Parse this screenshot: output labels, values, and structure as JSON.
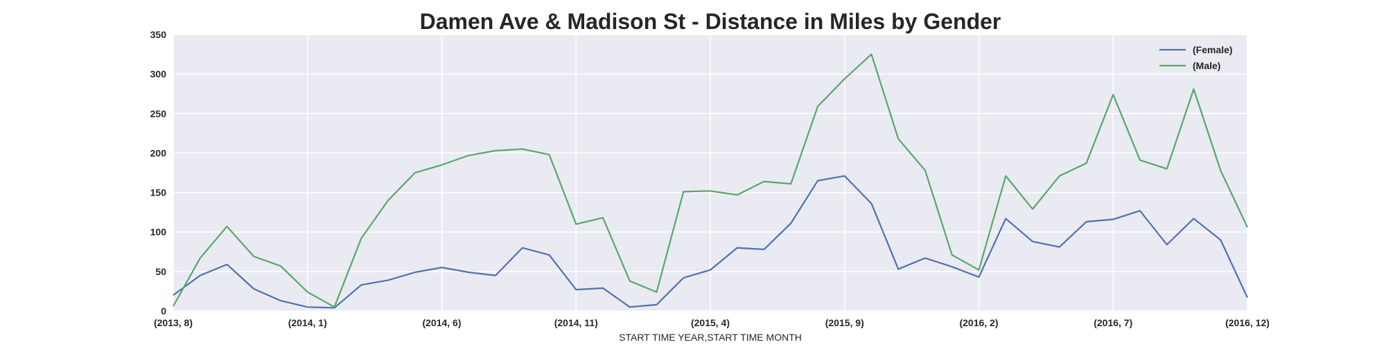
{
  "chart_data": {
    "type": "line",
    "title": "Damen Ave & Madison St - Distance in Miles by Gender",
    "xlabel": "START TIME YEAR,START TIME MONTH",
    "ylabel": "",
    "ylim": [
      0,
      350
    ],
    "yticks": [
      0,
      50,
      100,
      150,
      200,
      250,
      300,
      350
    ],
    "x": [
      "(2013, 8)",
      "(2013, 9)",
      "(2013, 10)",
      "(2013, 11)",
      "(2013, 12)",
      "(2014, 1)",
      "(2014, 2)",
      "(2014, 3)",
      "(2014, 4)",
      "(2014, 5)",
      "(2014, 6)",
      "(2014, 7)",
      "(2014, 8)",
      "(2014, 9)",
      "(2014, 10)",
      "(2014, 11)",
      "(2014, 12)",
      "(2015, 1)",
      "(2015, 2)",
      "(2015, 3)",
      "(2015, 4)",
      "(2015, 5)",
      "(2015, 6)",
      "(2015, 7)",
      "(2015, 8)",
      "(2015, 9)",
      "(2015, 10)",
      "(2015, 11)",
      "(2015, 12)",
      "(2016, 1)",
      "(2016, 2)",
      "(2016, 3)",
      "(2016, 4)",
      "(2016, 5)",
      "(2016, 6)",
      "(2016, 7)",
      "(2016, 8)",
      "(2016, 9)",
      "(2016, 10)",
      "(2016, 11)",
      "(2016, 12)"
    ],
    "xticks": [
      "(2013, 8)",
      "(2014, 1)",
      "(2014, 6)",
      "(2014, 11)",
      "(2015, 4)",
      "(2015, 9)",
      "(2016, 2)",
      "(2016, 7)",
      "(2016, 12)"
    ],
    "series": [
      {
        "name": "(Female)",
        "color": "#4c72b0",
        "values": [
          20,
          45,
          59,
          28,
          13,
          5,
          4,
          33,
          39,
          49,
          55,
          49,
          45,
          80,
          71,
          27,
          29,
          5,
          8,
          42,
          52,
          80,
          78,
          111,
          165,
          171,
          136,
          53,
          67,
          56,
          43,
          117,
          88,
          81,
          113,
          116,
          127,
          84,
          117,
          90,
          17
        ]
      },
      {
        "name": "(Male)",
        "color": "#55a868",
        "values": [
          6,
          67,
          107,
          69,
          57,
          24,
          5,
          92,
          140,
          175,
          185,
          197,
          203,
          205,
          198,
          110,
          118,
          38,
          24,
          151,
          152,
          147,
          164,
          161,
          259,
          294,
          325,
          218,
          178,
          71,
          52,
          171,
          129,
          171,
          187,
          274,
          191,
          180,
          281,
          178,
          106
        ]
      }
    ],
    "grid": true,
    "legend": "top-right"
  }
}
